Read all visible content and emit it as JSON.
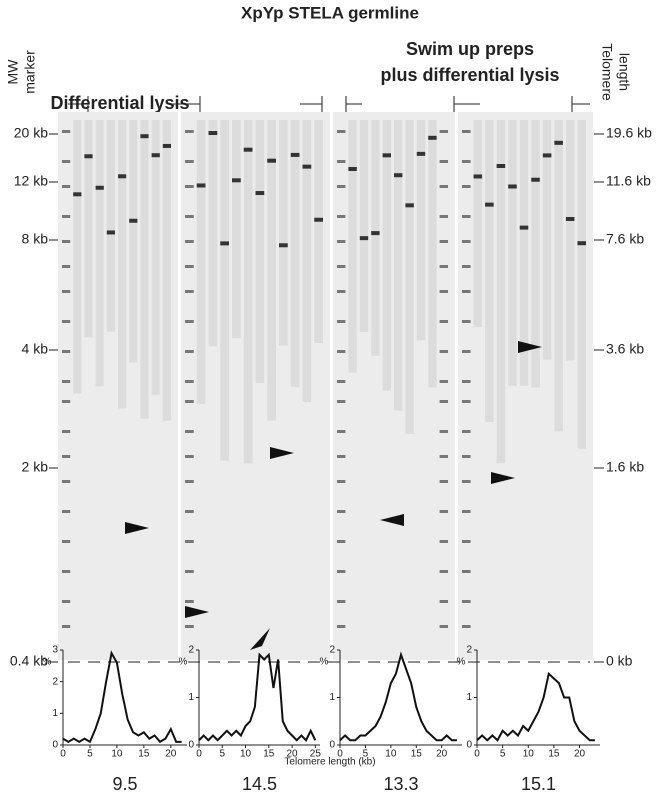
{
  "figure": {
    "title": "XpYp STELA germline",
    "left_label_1": "MW",
    "left_label_2": "marker",
    "right_label_1": "Telomere",
    "right_label_2": "length",
    "section_1": "Differential lysis",
    "section_2_line_1": "Swim up preps",
    "section_2_line_2": "plus differential lysis",
    "mw_labels": [
      "20 kb",
      "12 kb",
      "8 kb",
      "4 kb",
      "2 kb",
      "0.4 kb"
    ],
    "telomere_labels": [
      "19.6 kb",
      "11.6 kb",
      "7.6 kb",
      "3.6 kb",
      "1.6 kb",
      "0 kb"
    ],
    "x_axis_label": "Telomere length (kb)"
  },
  "chart_data": [
    {
      "type": "line",
      "ylabel": "%",
      "annotation": "9.5",
      "xlim": [
        0,
        23
      ],
      "ylim": [
        0,
        3
      ],
      "xticks": [
        0,
        5,
        10,
        15,
        20
      ],
      "yticks": [
        0,
        1,
        2,
        3
      ],
      "series": [
        {
          "color": "#111111",
          "x": [
            0,
            1,
            2,
            3,
            4,
            5,
            6,
            7,
            8,
            9,
            10,
            11,
            12,
            13,
            14,
            15,
            16,
            17,
            18,
            19,
            20,
            21,
            22
          ],
          "values": [
            0.2,
            0.1,
            0.2,
            0.1,
            0.2,
            0.1,
            0.5,
            1.0,
            2.0,
            2.9,
            2.6,
            1.6,
            0.8,
            0.4,
            0.3,
            0.4,
            0.2,
            0.3,
            0.1,
            0.2,
            0.5,
            0.1,
            0.1
          ]
        }
      ]
    },
    {
      "type": "line",
      "ylabel": "%",
      "annotation": "14.5",
      "xlim": [
        0,
        26
      ],
      "ylim": [
        0,
        2
      ],
      "xticks": [
        0,
        5,
        10,
        15,
        20,
        25
      ],
      "yticks": [
        0,
        1,
        2
      ],
      "series": [
        {
          "color": "#111111",
          "x": [
            0,
            1,
            2,
            3,
            4,
            5,
            6,
            7,
            8,
            9,
            10,
            11,
            12,
            13,
            14,
            15,
            16,
            17,
            18,
            19,
            20,
            21,
            22,
            23,
            24,
            25
          ],
          "values": [
            0.1,
            0.2,
            0.1,
            0.2,
            0.1,
            0.2,
            0.3,
            0.2,
            0.3,
            0.2,
            0.4,
            0.5,
            0.8,
            1.9,
            1.8,
            1.9,
            1.2,
            1.8,
            0.5,
            0.3,
            0.2,
            0.1,
            0.2,
            0.1,
            0.3,
            0.1
          ]
        }
      ]
    },
    {
      "type": "line",
      "ylabel": "%",
      "annotation": "13.3",
      "xlim": [
        0,
        24
      ],
      "ylim": [
        0,
        2
      ],
      "xticks": [
        0,
        5,
        10,
        15,
        20
      ],
      "yticks": [
        0,
        1,
        2
      ],
      "series": [
        {
          "color": "#111111",
          "x": [
            0,
            1,
            2,
            3,
            4,
            5,
            6,
            7,
            8,
            9,
            10,
            11,
            12,
            13,
            14,
            15,
            16,
            17,
            18,
            19,
            20,
            21,
            22,
            23
          ],
          "values": [
            0.1,
            0.2,
            0.1,
            0.1,
            0.2,
            0.2,
            0.3,
            0.4,
            0.6,
            0.9,
            1.3,
            1.5,
            1.9,
            1.6,
            1.3,
            0.8,
            0.5,
            0.3,
            0.2,
            0.1,
            0.1,
            0.2,
            0.1,
            0.1
          ]
        }
      ]
    },
    {
      "type": "line",
      "ylabel": "%",
      "annotation": "15.1",
      "xlim": [
        0,
        24
      ],
      "ylim": [
        0,
        2
      ],
      "xticks": [
        0,
        5,
        10,
        15,
        20
      ],
      "yticks": [
        0,
        1,
        2
      ],
      "series": [
        {
          "color": "#111111",
          "x": [
            0,
            1,
            2,
            3,
            4,
            5,
            6,
            7,
            8,
            9,
            10,
            11,
            12,
            13,
            14,
            15,
            16,
            17,
            18,
            19,
            20,
            21,
            22,
            23
          ],
          "values": [
            0.1,
            0.2,
            0.1,
            0.2,
            0.1,
            0.3,
            0.2,
            0.3,
            0.2,
            0.4,
            0.3,
            0.5,
            0.7,
            1.0,
            1.5,
            1.4,
            1.3,
            1.0,
            1.0,
            0.5,
            0.3,
            0.2,
            0.1,
            0.1
          ]
        }
      ]
    }
  ]
}
